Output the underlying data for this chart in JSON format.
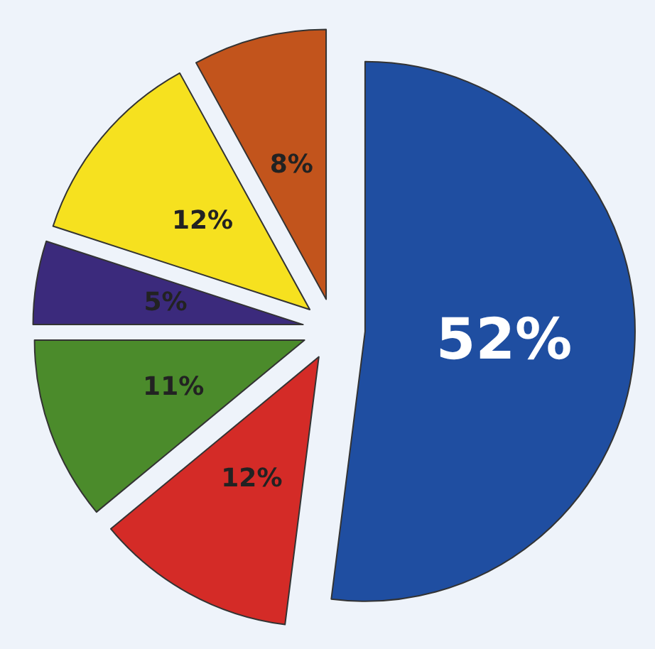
{
  "chart_data": {
    "type": "pie",
    "categories": [
      null,
      null,
      null,
      null,
      null,
      null
    ],
    "values": [
      52,
      12,
      11,
      5,
      12,
      8
    ],
    "colors": [
      "#1f4ea1",
      "#d42b27",
      "#4b8b2b",
      "#3b2a7c",
      "#f6e11f",
      "#c2541c"
    ],
    "value_labels": [
      "52%",
      "12%",
      "11%",
      "5%",
      "12%",
      "8%"
    ]
  }
}
